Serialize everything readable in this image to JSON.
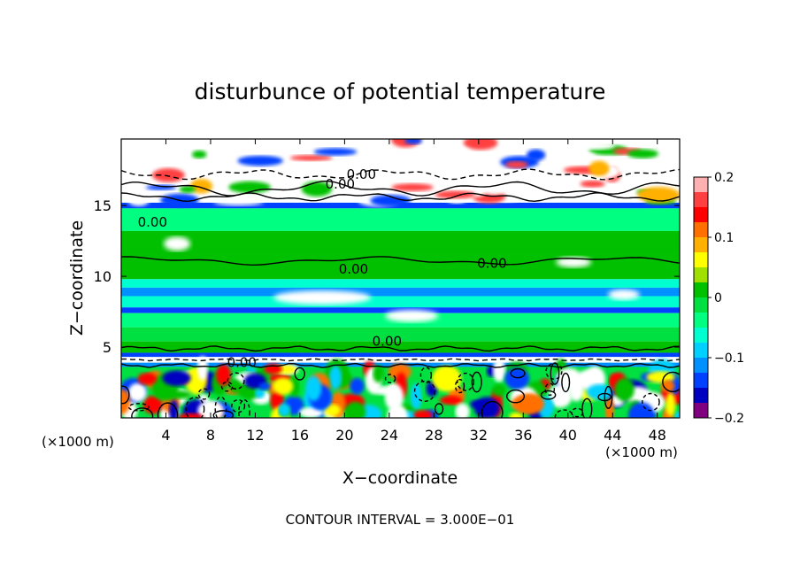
{
  "chart_data": {
    "type": "heatmap",
    "title": "disturbunce of potential temperature",
    "xlabel": "X−coordinate",
    "ylabel": "Z−coordinate",
    "x_unit": "(×1000 m)",
    "x_unit_right": "(×1000 m)",
    "footer": "CONTOUR INTERVAL = 3.000E−01",
    "xlim": [
      0,
      50
    ],
    "ylim": [
      0,
      19.7
    ],
    "x_ticks": [
      4,
      8,
      12,
      16,
      20,
      24,
      28,
      32,
      36,
      40,
      44,
      48
    ],
    "x_tick_labels": [
      "4",
      "8",
      "12",
      "16",
      "20",
      "24",
      "28",
      "32",
      "36",
      "40",
      "44",
      "48"
    ],
    "y_ticks": [
      5,
      10,
      15
    ],
    "y_tick_labels": [
      "5",
      "10",
      "15"
    ],
    "colorbar": {
      "min": -0.2,
      "max": 0.2,
      "ticks": [
        0.2,
        0.1,
        0,
        -0.1,
        -0.2
      ],
      "tick_labels": [
        "0.2",
        "0.1",
        "0",
        "−0.1",
        "−0.2"
      ],
      "colors": [
        "#ffb0b0",
        "#ff4040",
        "#ff0000",
        "#ff7000",
        "#ffb000",
        "#ffff00",
        "#a0e000",
        "#00c000",
        "#00e040",
        "#00ff80",
        "#00ffd0",
        "#00d0ff",
        "#0090ff",
        "#0040ff",
        "#0000c0",
        "#800080"
      ]
    },
    "contour_labels": [
      {
        "text": "0.00",
        "x": 2.8,
        "y": 13.5
      },
      {
        "text": "0.00",
        "x": 21.5,
        "y": 16.9
      },
      {
        "text": "0.00",
        "x": 19.6,
        "y": 16.2
      },
      {
        "text": "0.00",
        "x": 20.8,
        "y": 10.2
      },
      {
        "text": "0.00",
        "x": 33.2,
        "y": 10.6
      },
      {
        "text": "0.00",
        "x": 23.8,
        "y": 5.1
      },
      {
        "text": "0.00",
        "x": 10.8,
        "y": 3.6
      }
    ],
    "bands": [
      {
        "z0": 15.2,
        "z1": 19.7,
        "value": 0.2
      },
      {
        "z0": 14.8,
        "z1": 15.2,
        "value": -0.15
      },
      {
        "z0": 13.2,
        "z1": 14.8,
        "value": -0.03
      },
      {
        "z0": 11.6,
        "z1": 13.2,
        "value": 0.02
      },
      {
        "z0": 9.8,
        "z1": 11.6,
        "value": 0.01
      },
      {
        "z0": 9.2,
        "z1": 9.8,
        "value": -0.06
      },
      {
        "z0": 8.6,
        "z1": 9.2,
        "value": -0.1
      },
      {
        "z0": 7.8,
        "z1": 8.6,
        "value": -0.05
      },
      {
        "z0": 7.4,
        "z1": 7.8,
        "value": -0.13
      },
      {
        "z0": 6.4,
        "z1": 7.4,
        "value": -0.04
      },
      {
        "z0": 5.4,
        "z1": 6.4,
        "value": -0.01
      },
      {
        "z0": 4.6,
        "z1": 5.4,
        "value": 0.02
      },
      {
        "z0": 4.3,
        "z1": 4.6,
        "value": -0.15
      },
      {
        "z0": 3.9,
        "z1": 4.3,
        "value": 0.2
      },
      {
        "z0": 3.6,
        "z1": 3.9,
        "value": -0.12
      },
      {
        "z0": 0,
        "z1": 3.6,
        "value": 0.0
      }
    ],
    "grid": false
  }
}
